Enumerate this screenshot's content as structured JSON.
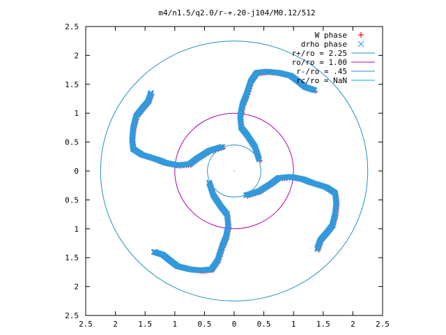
{
  "chart_data": {
    "type": "scatter",
    "title": "m4/n1.5/q2.0/r-+.20-j104/M0.12/512",
    "xlabel": "",
    "ylabel": "",
    "xlim": [
      -2.5,
      2.5
    ],
    "ylim": [
      -2.5,
      2.5
    ],
    "x_tick_labels": [
      "2.5",
      "2",
      "1.5",
      "1",
      "0.5",
      "0",
      "0.5",
      "1",
      "1.5",
      "2",
      "2.5"
    ],
    "y_tick_labels": [
      "2.5",
      "2",
      "1.5",
      "1",
      "0.5",
      "0",
      "0.5",
      "1",
      "1.5",
      "2",
      "2.5"
    ],
    "grid": false,
    "legend_position": "top-right",
    "colors": {
      "w_phase": "#ff0000",
      "drho_phase": "#3399dd",
      "r_plus": "#1e90c8",
      "r_o": "#b000b0",
      "r_minus": "#1e90c8",
      "r_c": "#00b4c8",
      "frame": "#000000"
    },
    "legend": [
      {
        "label": "W phase",
        "marker": "plus",
        "color": "#ff0000"
      },
      {
        "label": "drho phase",
        "marker": "cross",
        "color": "#3399dd"
      },
      {
        "label": "r+/ro = 2.25",
        "marker": "line",
        "color": "#1e90c8"
      },
      {
        "label": "ro/ro = 1.00",
        "marker": "line",
        "color": "#b000b0"
      },
      {
        "label": "r-/ro = .45",
        "marker": "line",
        "color": "#1e90c8"
      },
      {
        "label": "rc/ro = NaN",
        "marker": "line",
        "color": "#00b4c8"
      }
    ],
    "circles": [
      {
        "name": "r+/ro",
        "radius": 2.25
      },
      {
        "name": "ro/ro",
        "radius": 1.0
      },
      {
        "name": "r-/ro",
        "radius": 0.45
      }
    ],
    "arm_template": [
      [
        0.42,
        0.2
      ],
      [
        0.35,
        0.42
      ],
      [
        0.22,
        0.62
      ],
      [
        0.12,
        0.75
      ],
      [
        0.1,
        0.95
      ],
      [
        0.14,
        1.15
      ],
      [
        0.2,
        1.3
      ],
      [
        0.28,
        1.55
      ],
      [
        0.38,
        1.7
      ],
      [
        0.55,
        1.72
      ],
      [
        0.75,
        1.7
      ],
      [
        0.95,
        1.65
      ],
      [
        1.08,
        1.55
      ],
      [
        1.2,
        1.45
      ],
      [
        1.35,
        1.4
      ]
    ],
    "arm_count": 4,
    "arm_rotation_deg": [
      0,
      90,
      180,
      270
    ]
  }
}
